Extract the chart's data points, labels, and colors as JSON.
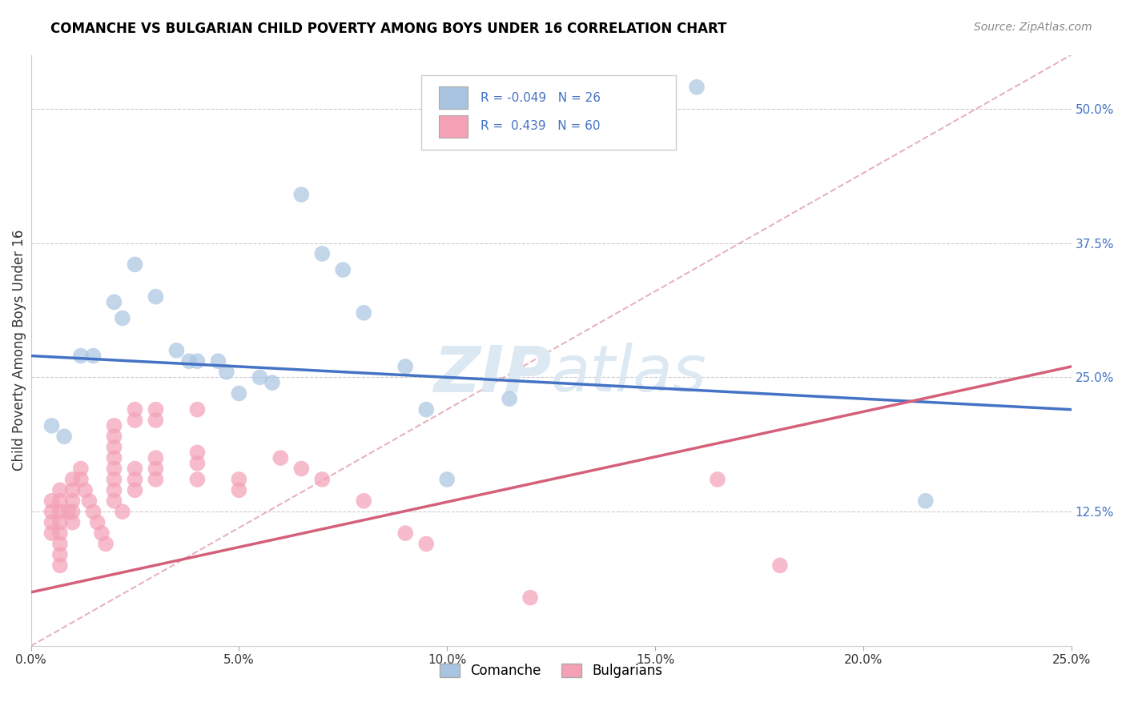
{
  "title": "COMANCHE VS BULGARIAN CHILD POVERTY AMONG BOYS UNDER 16 CORRELATION CHART",
  "source": "Source: ZipAtlas.com",
  "ylabel": "Child Poverty Among Boys Under 16",
  "xlim": [
    0.0,
    0.25
  ],
  "ylim": [
    0.0,
    0.55
  ],
  "xtick_labels": [
    "0.0%",
    "5.0%",
    "10.0%",
    "15.0%",
    "20.0%",
    "25.0%"
  ],
  "xtick_vals": [
    0.0,
    0.05,
    0.1,
    0.15,
    0.2,
    0.25
  ],
  "ytick_labels": [
    "12.5%",
    "25.0%",
    "37.5%",
    "50.0%"
  ],
  "ytick_vals": [
    0.125,
    0.25,
    0.375,
    0.5
  ],
  "comanche_R": "-0.049",
  "comanche_N": "26",
  "bulgarian_R": "0.439",
  "bulgarian_N": "60",
  "comanche_color": "#a8c4e0",
  "bulgarian_color": "#f4a0b5",
  "trendline_comanche_color": "#4472c4",
  "trendline_bulgarian_color": "#d4607a",
  "trendline_dashed_color": "#e0a0b0",
  "watermark_color": "#dce8f2",
  "comanche_trendline": [
    0.27,
    0.22
  ],
  "bulgarian_trendline": [
    0.05,
    0.26
  ],
  "comanche_points": [
    [
      0.005,
      0.205
    ],
    [
      0.008,
      0.195
    ],
    [
      0.012,
      0.27
    ],
    [
      0.015,
      0.27
    ],
    [
      0.02,
      0.32
    ],
    [
      0.022,
      0.305
    ],
    [
      0.025,
      0.355
    ],
    [
      0.03,
      0.325
    ],
    [
      0.035,
      0.275
    ],
    [
      0.038,
      0.265
    ],
    [
      0.04,
      0.265
    ],
    [
      0.045,
      0.265
    ],
    [
      0.047,
      0.255
    ],
    [
      0.05,
      0.235
    ],
    [
      0.055,
      0.25
    ],
    [
      0.058,
      0.245
    ],
    [
      0.065,
      0.42
    ],
    [
      0.07,
      0.365
    ],
    [
      0.075,
      0.35
    ],
    [
      0.08,
      0.31
    ],
    [
      0.09,
      0.26
    ],
    [
      0.095,
      0.22
    ],
    [
      0.1,
      0.155
    ],
    [
      0.115,
      0.23
    ],
    [
      0.16,
      0.52
    ],
    [
      0.215,
      0.135
    ]
  ],
  "bulgarian_points": [
    [
      0.005,
      0.135
    ],
    [
      0.005,
      0.125
    ],
    [
      0.005,
      0.115
    ],
    [
      0.005,
      0.105
    ],
    [
      0.007,
      0.145
    ],
    [
      0.007,
      0.135
    ],
    [
      0.007,
      0.125
    ],
    [
      0.007,
      0.115
    ],
    [
      0.007,
      0.105
    ],
    [
      0.007,
      0.095
    ],
    [
      0.007,
      0.085
    ],
    [
      0.007,
      0.075
    ],
    [
      0.009,
      0.125
    ],
    [
      0.01,
      0.155
    ],
    [
      0.01,
      0.145
    ],
    [
      0.01,
      0.135
    ],
    [
      0.01,
      0.125
    ],
    [
      0.01,
      0.115
    ],
    [
      0.012,
      0.165
    ],
    [
      0.012,
      0.155
    ],
    [
      0.013,
      0.145
    ],
    [
      0.014,
      0.135
    ],
    [
      0.015,
      0.125
    ],
    [
      0.016,
      0.115
    ],
    [
      0.017,
      0.105
    ],
    [
      0.018,
      0.095
    ],
    [
      0.02,
      0.205
    ],
    [
      0.02,
      0.195
    ],
    [
      0.02,
      0.185
    ],
    [
      0.02,
      0.175
    ],
    [
      0.02,
      0.165
    ],
    [
      0.02,
      0.155
    ],
    [
      0.02,
      0.145
    ],
    [
      0.02,
      0.135
    ],
    [
      0.022,
      0.125
    ],
    [
      0.025,
      0.22
    ],
    [
      0.025,
      0.21
    ],
    [
      0.025,
      0.165
    ],
    [
      0.025,
      0.155
    ],
    [
      0.025,
      0.145
    ],
    [
      0.03,
      0.22
    ],
    [
      0.03,
      0.21
    ],
    [
      0.03,
      0.175
    ],
    [
      0.03,
      0.165
    ],
    [
      0.03,
      0.155
    ],
    [
      0.04,
      0.22
    ],
    [
      0.04,
      0.18
    ],
    [
      0.04,
      0.17
    ],
    [
      0.04,
      0.155
    ],
    [
      0.05,
      0.155
    ],
    [
      0.05,
      0.145
    ],
    [
      0.06,
      0.175
    ],
    [
      0.065,
      0.165
    ],
    [
      0.07,
      0.155
    ],
    [
      0.08,
      0.135
    ],
    [
      0.09,
      0.105
    ],
    [
      0.095,
      0.095
    ],
    [
      0.12,
      0.045
    ],
    [
      0.165,
      0.155
    ],
    [
      0.18,
      0.075
    ]
  ]
}
